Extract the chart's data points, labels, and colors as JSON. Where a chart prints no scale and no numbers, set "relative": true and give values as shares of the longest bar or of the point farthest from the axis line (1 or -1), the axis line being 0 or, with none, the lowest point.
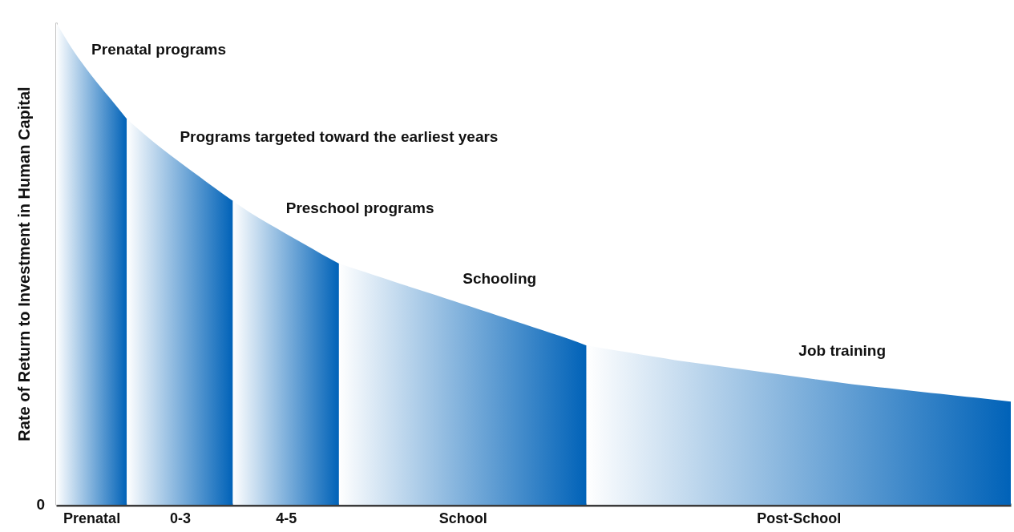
{
  "chart_data": {
    "type": "area",
    "relative": true,
    "ylabel": "Rate of Return to Investment in Human Capital",
    "grid": false,
    "categories": [
      null,
      null,
      "Prenatal",
      null,
      null,
      null,
      null,
      "0-3",
      null,
      null,
      null,
      null,
      null,
      "4-5",
      null,
      null,
      null,
      null,
      null,
      null,
      null,
      null,
      null,
      "School",
      null,
      null,
      null,
      null,
      null,
      null,
      null,
      null,
      null,
      null,
      null,
      null,
      null,
      null,
      null,
      null,
      null,
      null,
      "Post-School",
      null,
      null,
      null,
      null,
      null,
      null,
      null,
      null,
      null,
      null,
      null,
      null
    ],
    "annotations": [
      "0"
    ],
    "series": [
      {
        "name": "Prenatal programs",
        "color": "#0062b8",
        "values": [
          1.0,
          0.94,
          0.89,
          0.845,
          0.8,
          null,
          null,
          null,
          null,
          null,
          null,
          null,
          null,
          null,
          null,
          null,
          null,
          null,
          null,
          null,
          null,
          null,
          null,
          null,
          null,
          null,
          null,
          null,
          null,
          null,
          null,
          null,
          null,
          null,
          null,
          null,
          null,
          null,
          null,
          null,
          null,
          null,
          null,
          null,
          null,
          null,
          null,
          null,
          null,
          null,
          null,
          null,
          null,
          null,
          null
        ]
      },
      {
        "name": "Programs targeted toward the earliest years",
        "color": "#0062b8",
        "values": [
          null,
          null,
          null,
          null,
          0.8,
          0.768,
          0.738,
          0.71,
          0.683,
          0.656,
          0.63,
          null,
          null,
          null,
          null,
          null,
          null,
          null,
          null,
          null,
          null,
          null,
          null,
          null,
          null,
          null,
          null,
          null,
          null,
          null,
          null,
          null,
          null,
          null,
          null,
          null,
          null,
          null,
          null,
          null,
          null,
          null,
          null,
          null,
          null,
          null,
          null,
          null,
          null,
          null,
          null,
          null,
          null,
          null,
          null
        ]
      },
      {
        "name": "Preschool programs",
        "color": "#0062b8",
        "values": [
          null,
          null,
          null,
          null,
          null,
          null,
          null,
          null,
          null,
          null,
          0.63,
          0.605,
          0.583,
          0.562,
          0.541,
          0.52,
          0.5,
          null,
          null,
          null,
          null,
          null,
          null,
          null,
          null,
          null,
          null,
          null,
          null,
          null,
          null,
          null,
          null,
          null,
          null,
          null,
          null,
          null,
          null,
          null,
          null,
          null,
          null,
          null,
          null,
          null,
          null,
          null,
          null,
          null,
          null,
          null,
          null,
          null,
          null
        ]
      },
      {
        "name": "Schooling",
        "color": "#0062b8",
        "values": [
          null,
          null,
          null,
          null,
          null,
          null,
          null,
          null,
          null,
          null,
          null,
          null,
          null,
          null,
          null,
          null,
          0.5,
          0.488,
          0.476,
          0.464,
          0.452,
          0.44,
          0.428,
          0.416,
          0.404,
          0.392,
          0.38,
          0.368,
          0.356,
          0.344,
          0.33,
          null,
          null,
          null,
          null,
          null,
          null,
          null,
          null,
          null,
          null,
          null,
          null,
          null,
          null,
          null,
          null,
          null,
          null,
          null,
          null,
          null,
          null,
          null,
          null
        ]
      },
      {
        "name": "Job training",
        "color": "#0062b8",
        "values": [
          null,
          null,
          null,
          null,
          null,
          null,
          null,
          null,
          null,
          null,
          null,
          null,
          null,
          null,
          null,
          null,
          null,
          null,
          null,
          null,
          null,
          null,
          null,
          null,
          null,
          null,
          null,
          null,
          null,
          null,
          0.33,
          0.324,
          0.318,
          0.312,
          0.306,
          0.3,
          0.295,
          0.29,
          0.285,
          0.28,
          0.275,
          0.27,
          0.265,
          0.26,
          0.255,
          0.25,
          0.246,
          0.242,
          0.238,
          0.234,
          0.23,
          0.226,
          0.222,
          0.218,
          0.214
        ]
      }
    ]
  }
}
